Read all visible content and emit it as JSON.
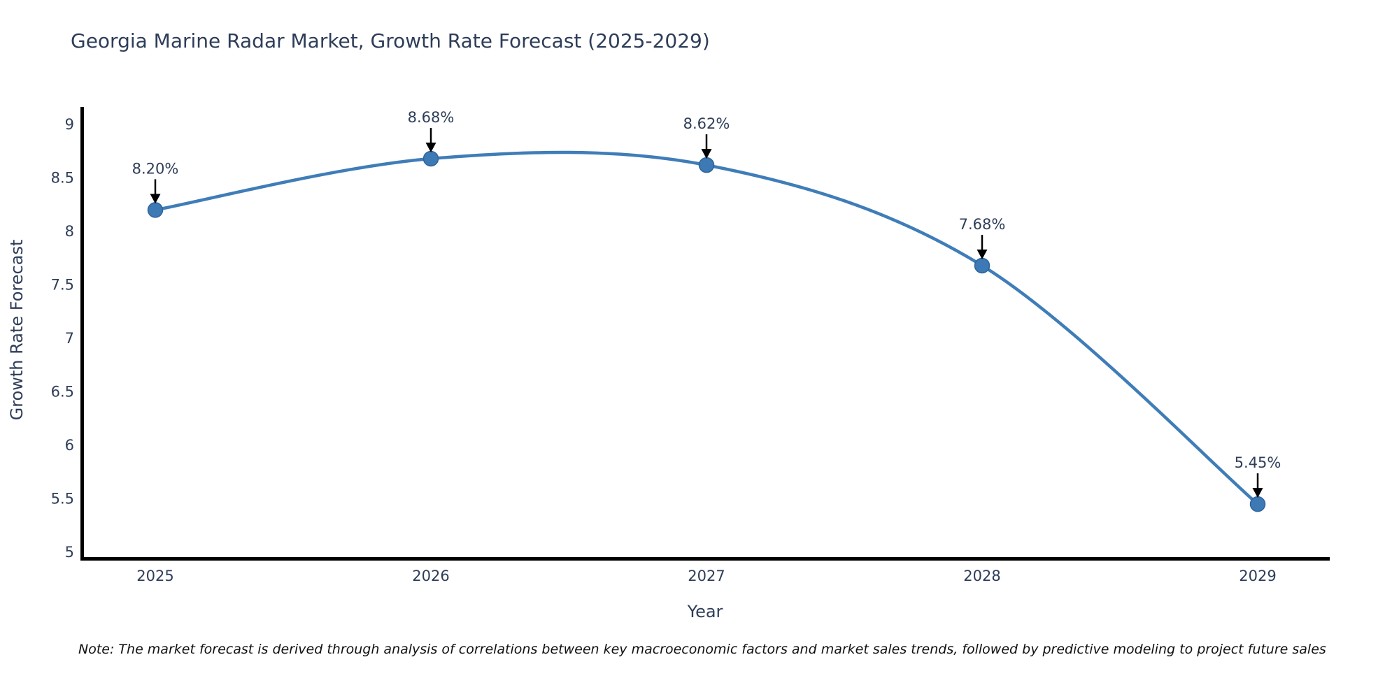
{
  "title": "Georgia Marine Radar Market, Growth Rate Forecast (2025-2029)",
  "note": "Note: The market forecast is derived through analysis of correlations between key macroeconomic factors and market sales trends, followed by predictive modeling to project future sales",
  "chart_data": {
    "type": "line",
    "title": "Georgia Marine Radar Market, Growth Rate Forecast (2025-2029)",
    "x": [
      2025,
      2026,
      2027,
      2028,
      2029
    ],
    "series": [
      {
        "name": "Growth Rate Forecast",
        "values": [
          8.2,
          8.68,
          8.62,
          7.68,
          5.45
        ]
      }
    ],
    "point_labels": [
      "8.20%",
      "8.68%",
      "8.62%",
      "7.68%",
      "5.45%"
    ],
    "xlabel": "Year",
    "ylabel": "Growth Rate Forecast",
    "xtick_labels": [
      "2025",
      "2026",
      "2027",
      "2028",
      "2029"
    ],
    "ytick_labels": [
      "9",
      "8.5",
      "8",
      "7.5",
      "7",
      "6.5",
      "6",
      "5.5",
      "5"
    ],
    "ytick_values": [
      9,
      8.5,
      8,
      7.5,
      7,
      6.5,
      6,
      5.5,
      5
    ],
    "ylim": [
      4.93,
      9.16
    ],
    "xlim": [
      2024.73,
      2029.26
    ],
    "grid": false,
    "legend_position": "none",
    "line_shape": "spline",
    "marker": "circle",
    "annotation_style": "value-label-with-down-arrow",
    "colors": {
      "line": "#3f7db8",
      "marker_fill": "#3d7ab5",
      "marker_edge": "#2f6399",
      "arrow": "#000000",
      "axis": "#000000",
      "text": "#2e3d59",
      "note_text": "#111111",
      "background": "#ffffff"
    }
  }
}
